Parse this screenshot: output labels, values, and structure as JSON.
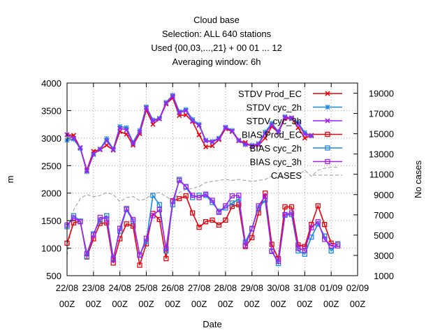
{
  "chart_data": {
    "type": "line",
    "title": [
      "Cloud base",
      "Selection: ALL    640 stations",
      "Used {00,03,...,21} + 00 01 ... 12",
      "Averaging window:  6h"
    ],
    "xlabel": "Date",
    "ylabel": "m",
    "y2label": "No cases",
    "ylim": [
      500,
      4000
    ],
    "y2lim": [
      1000,
      20000
    ],
    "yticks": [
      "500",
      "1000",
      "1500",
      "2000",
      "2500",
      "3000",
      "3500",
      "4000"
    ],
    "y2ticks": [
      "1000",
      "3000",
      "5000",
      "7000",
      "9000",
      "11000",
      "13000",
      "15000",
      "17000",
      "19000"
    ],
    "xticks": [
      {
        "date": "22/08",
        "hour": "00Z"
      },
      {
        "date": "23/08",
        "hour": "00Z"
      },
      {
        "date": "24/08",
        "hour": "00Z"
      },
      {
        "date": "25/08",
        "hour": "00Z"
      },
      {
        "date": "26/08",
        "hour": "00Z"
      },
      {
        "date": "27/08",
        "hour": "00Z"
      },
      {
        "date": "28/08",
        "hour": "00Z"
      },
      {
        "date": "29/08",
        "hour": "00Z"
      },
      {
        "date": "30/08",
        "hour": "00Z"
      },
      {
        "date": "31/08",
        "hour": "00Z"
      },
      {
        "date": "01/09",
        "hour": "00Z"
      },
      {
        "date": "02/09",
        "hour": "00Z"
      }
    ],
    "grid": true,
    "legend_position": "top-right",
    "x_days": [
      0,
      0.25,
      0.5,
      0.75,
      1,
      1.25,
      1.5,
      1.75,
      2,
      2.25,
      2.5,
      2.75,
      3,
      3.25,
      3.5,
      3.75,
      4,
      4.25,
      4.5,
      4.75,
      5,
      5.25,
      5.5,
      5.75,
      6,
      6.25,
      6.5,
      6.75,
      7,
      7.25,
      7.5,
      7.75,
      8,
      8.25,
      8.5,
      8.75,
      9,
      9.25,
      9.5,
      9.75,
      10,
      10.25
    ],
    "series": [
      {
        "name": "STDV Prod_EC",
        "color": "#e8000b",
        "marker": "x",
        "axis": "y",
        "values": [
          3060,
          3050,
          2820,
          2420,
          2760,
          2790,
          2870,
          2780,
          3120,
          3070,
          2870,
          3080,
          3510,
          3250,
          3350,
          3620,
          3730,
          3410,
          3420,
          3300,
          3060,
          2840,
          2860,
          2970,
          3170,
          3120,
          2950,
          2920,
          2850,
          2870,
          3000,
          3210,
          3100,
          3360,
          3350,
          3190,
          3000,
          3050,
          null,
          null,
          null,
          null
        ]
      },
      {
        "name": "STDV cyc_2h",
        "color": "#1e88e5",
        "marker": "*",
        "axis": "y",
        "values": [
          2960,
          2980,
          2810,
          2390,
          2700,
          2800,
          2990,
          2800,
          3210,
          3190,
          2920,
          3140,
          3570,
          3330,
          3360,
          3650,
          3780,
          3480,
          3520,
          3340,
          3250,
          2960,
          2940,
          3000,
          3200,
          3140,
          2960,
          2880,
          2870,
          2900,
          3110,
          3270,
          3120,
          3390,
          3360,
          3280,
          3100,
          3040,
          null,
          null,
          null,
          null
        ]
      },
      {
        "name": "STDV cyc_3h",
        "color": "#a020f0",
        "marker": "x",
        "axis": "y",
        "values": [
          3060,
          3000,
          2830,
          2400,
          2710,
          2800,
          2950,
          2790,
          3180,
          3150,
          2900,
          3110,
          3550,
          3310,
          3350,
          3640,
          3760,
          3460,
          3500,
          3310,
          3230,
          2950,
          2930,
          2990,
          3190,
          3130,
          2960,
          2890,
          2860,
          2890,
          3080,
          3240,
          3110,
          3380,
          3370,
          3250,
          3070,
          3040,
          null,
          null,
          null,
          null
        ]
      },
      {
        "name": "BIAS Prod_EC",
        "color": "#e8000b",
        "marker": "square",
        "axis": "y",
        "values": [
          1090,
          1460,
          1490,
          840,
          1170,
          1450,
          1460,
          730,
          1170,
          1440,
          1400,
          690,
          1080,
          1630,
          1520,
          810,
          1860,
          1900,
          1950,
          1640,
          1380,
          1480,
          1510,
          1420,
          1510,
          1760,
          1790,
          1030,
          1190,
          1640,
          2000,
          1070,
          810,
          1750,
          1750,
          1060,
          1030,
          1430,
          1770,
          1430,
          1090,
          1070
        ]
      },
      {
        "name": "BIAS cyc_2h",
        "color": "#1e88e5",
        "marker": "square",
        "axis": "y",
        "values": [
          1390,
          1590,
          1490,
          850,
          1260,
          1510,
          1590,
          820,
          1310,
          1700,
          1490,
          880,
          1120,
          1960,
          1790,
          950,
          1790,
          2250,
          2110,
          1920,
          1960,
          1960,
          1830,
          1670,
          1730,
          1820,
          1890,
          1110,
          1360,
          1730,
          1870,
          950,
          720,
          1600,
          1610,
          950,
          890,
          1200,
          1440,
          1220,
          950,
          1080
        ]
      },
      {
        "name": "BIAS cyc_3h",
        "color": "#a020f0",
        "marker": "square",
        "axis": "y",
        "values": [
          1420,
          1550,
          1480,
          900,
          1240,
          1560,
          1530,
          790,
          1360,
          1720,
          1520,
          870,
          1180,
          1590,
          1700,
          990,
          1850,
          2230,
          2120,
          1960,
          1920,
          1980,
          1870,
          1650,
          1770,
          1950,
          1960,
          1050,
          1350,
          1770,
          1940,
          940,
          760,
          1610,
          1640,
          1000,
          960,
          1370,
          1480,
          1160,
          1040,
          1040
        ]
      },
      {
        "name": "CASES",
        "color": "#9a9a9a",
        "marker": "none",
        "dashed": true,
        "axis": "y2",
        "values": [
          3000,
          7500,
          8600,
          9000,
          8800,
          8900,
          9200,
          9000,
          8300,
          8700,
          8800,
          8400,
          8600,
          9100,
          9200,
          8800,
          8400,
          9200,
          9500,
          9600,
          9800,
          10200,
          10300,
          10400,
          10500,
          10400,
          10500,
          10400,
          10300,
          10400,
          10500,
          10800,
          10600,
          10800,
          11100,
          10900,
          11400,
          10800,
          11400,
          11600,
          11700,
          11700
        ]
      }
    ]
  }
}
